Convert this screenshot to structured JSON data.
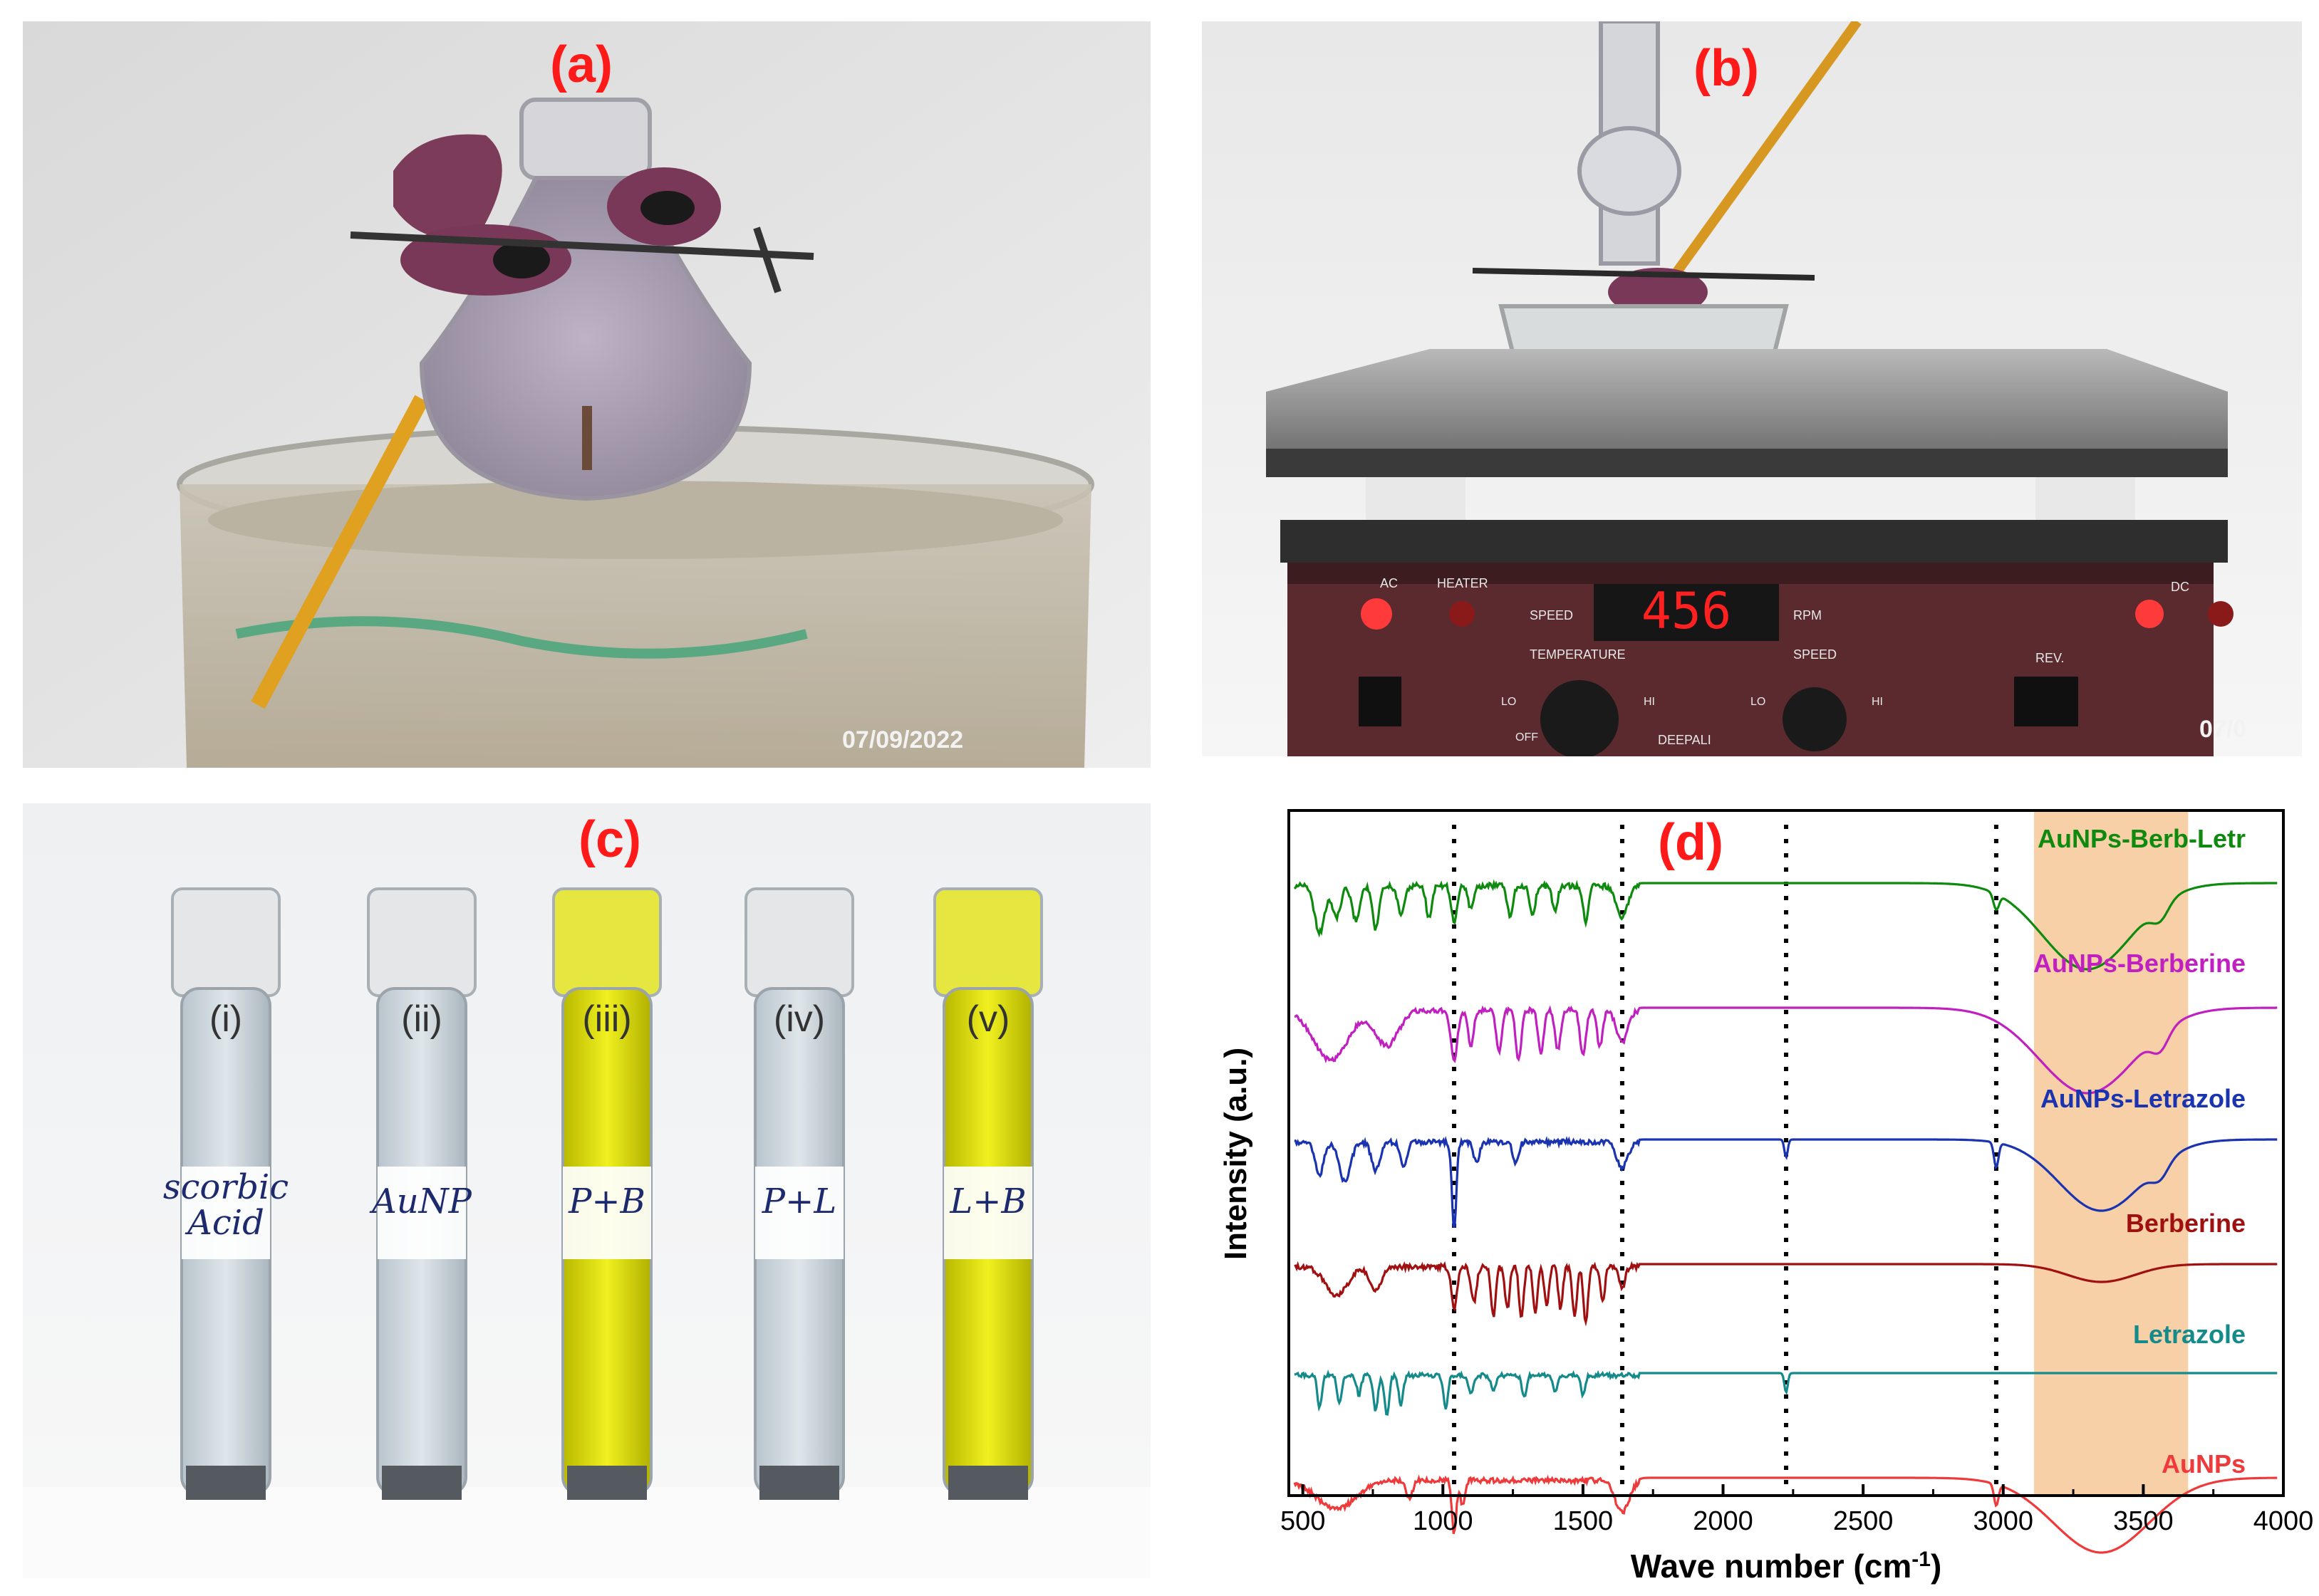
{
  "panels": {
    "a": {
      "label": "(a)",
      "date": "07/09/2022"
    },
    "b": {
      "label": "(b)",
      "date": "07/0",
      "display": "456",
      "controls": [
        "AC",
        "HEATER",
        "SPEED",
        "RPM",
        "DC",
        "TEMPERATURE",
        "SPEED",
        "REV.",
        "LO",
        "HI",
        "LO",
        "HI",
        "OFF",
        "DEEPALI"
      ]
    },
    "c": {
      "label": "(c)",
      "tubes": [
        {
          "roman": "(i)",
          "note": "scorbic\nAcid",
          "color": "clear"
        },
        {
          "roman": "(ii)",
          "note": "AuNP",
          "color": "clear"
        },
        {
          "roman": "(iii)",
          "note": "P+B",
          "color": "yellow"
        },
        {
          "roman": "(iv)",
          "note": "P+L",
          "color": "clear"
        },
        {
          "roman": "(v)",
          "note": "L+B",
          "color": "yellow"
        }
      ]
    },
    "d": {
      "label": "(d)"
    }
  },
  "colors": {
    "panel_label": "#ff1a1a",
    "highlight": "#f8d0a8"
  },
  "chart_data": {
    "type": "line",
    "xlabel": "Wave number (cm⁻¹)",
    "ylabel": "Intensity (a.u.)",
    "xlim": [
      450,
      4000
    ],
    "xticks": [
      500,
      1000,
      1500,
      2000,
      2500,
      3000,
      3500,
      4000
    ],
    "highlight_region": [
      3110,
      3660
    ],
    "dotted_lines_x": [
      1040,
      1640,
      2225,
      2975
    ],
    "series": [
      {
        "name": "AuNPs-Berb-Letr",
        "color": "#0e8a0e",
        "baseline": 0.0,
        "features": [
          [
            560,
            60,
            18
          ],
          [
            620,
            40,
            15
          ],
          [
            690,
            45,
            14
          ],
          [
            760,
            55,
            12
          ],
          [
            850,
            35,
            12
          ],
          [
            950,
            40,
            10
          ],
          [
            1040,
            45,
            10
          ],
          [
            1100,
            30,
            10
          ],
          [
            1240,
            40,
            10
          ],
          [
            1320,
            35,
            10
          ],
          [
            1400,
            30,
            10
          ],
          [
            1510,
            45,
            10
          ],
          [
            1640,
            40,
            20
          ],
          [
            2975,
            20,
            10
          ],
          [
            3300,
            110,
            160
          ],
          [
            3560,
            20,
            30
          ]
        ]
      },
      {
        "name": "AuNPs-Berberine",
        "color": "#c020c0",
        "baseline": 0.0,
        "features": [
          [
            600,
            70,
            60
          ],
          [
            800,
            50,
            40
          ],
          [
            1040,
            70,
            12
          ],
          [
            1100,
            50,
            10
          ],
          [
            1200,
            60,
            10
          ],
          [
            1270,
            70,
            10
          ],
          [
            1350,
            60,
            10
          ],
          [
            1410,
            55,
            10
          ],
          [
            1500,
            65,
            10
          ],
          [
            1560,
            50,
            10
          ],
          [
            1640,
            45,
            20
          ],
          [
            3300,
            120,
            170
          ],
          [
            3560,
            25,
            30
          ]
        ]
      },
      {
        "name": "AuNPs-Letrazole",
        "color": "#1a33b0",
        "baseline": 0.0,
        "features": [
          [
            560,
            45,
            15
          ],
          [
            650,
            55,
            20
          ],
          [
            760,
            40,
            15
          ],
          [
            860,
            35,
            12
          ],
          [
            1040,
            120,
            8
          ],
          [
            1120,
            30,
            10
          ],
          [
            1260,
            30,
            10
          ],
          [
            1640,
            35,
            20
          ],
          [
            2225,
            25,
            6
          ],
          [
            2975,
            35,
            8
          ],
          [
            3350,
            100,
            150
          ],
          [
            3560,
            20,
            30
          ]
        ]
      },
      {
        "name": "Berberine",
        "color": "#a01010",
        "baseline": 0.0,
        "features": [
          [
            620,
            40,
            40
          ],
          [
            760,
            35,
            20
          ],
          [
            1040,
            60,
            10
          ],
          [
            1110,
            50,
            10
          ],
          [
            1180,
            70,
            8
          ],
          [
            1230,
            60,
            8
          ],
          [
            1280,
            75,
            8
          ],
          [
            1330,
            65,
            8
          ],
          [
            1370,
            55,
            8
          ],
          [
            1420,
            60,
            8
          ],
          [
            1470,
            70,
            8
          ],
          [
            1510,
            80,
            8
          ],
          [
            1570,
            50,
            8
          ],
          [
            1640,
            30,
            10
          ],
          [
            3350,
            25,
            120
          ]
        ]
      },
      {
        "name": "Letrazole",
        "color": "#158a8a",
        "baseline": 0.0,
        "features": [
          [
            560,
            50,
            8
          ],
          [
            630,
            45,
            8
          ],
          [
            700,
            30,
            8
          ],
          [
            760,
            55,
            8
          ],
          [
            800,
            65,
            8
          ],
          [
            850,
            45,
            8
          ],
          [
            1010,
            50,
            8
          ],
          [
            1100,
            30,
            8
          ],
          [
            1180,
            25,
            8
          ],
          [
            1290,
            35,
            8
          ],
          [
            1400,
            25,
            8
          ],
          [
            1500,
            30,
            8
          ],
          [
            2225,
            30,
            6
          ]
        ]
      },
      {
        "name": "AuNPs",
        "color": "#ee3a3a",
        "baseline": 0.0,
        "features": [
          [
            620,
            40,
            70
          ],
          [
            880,
            25,
            12
          ],
          [
            1040,
            75,
            8
          ],
          [
            1070,
            35,
            8
          ],
          [
            1640,
            45,
            25
          ],
          [
            2975,
            30,
            8
          ],
          [
            3350,
            105,
            170
          ]
        ]
      }
    ]
  }
}
